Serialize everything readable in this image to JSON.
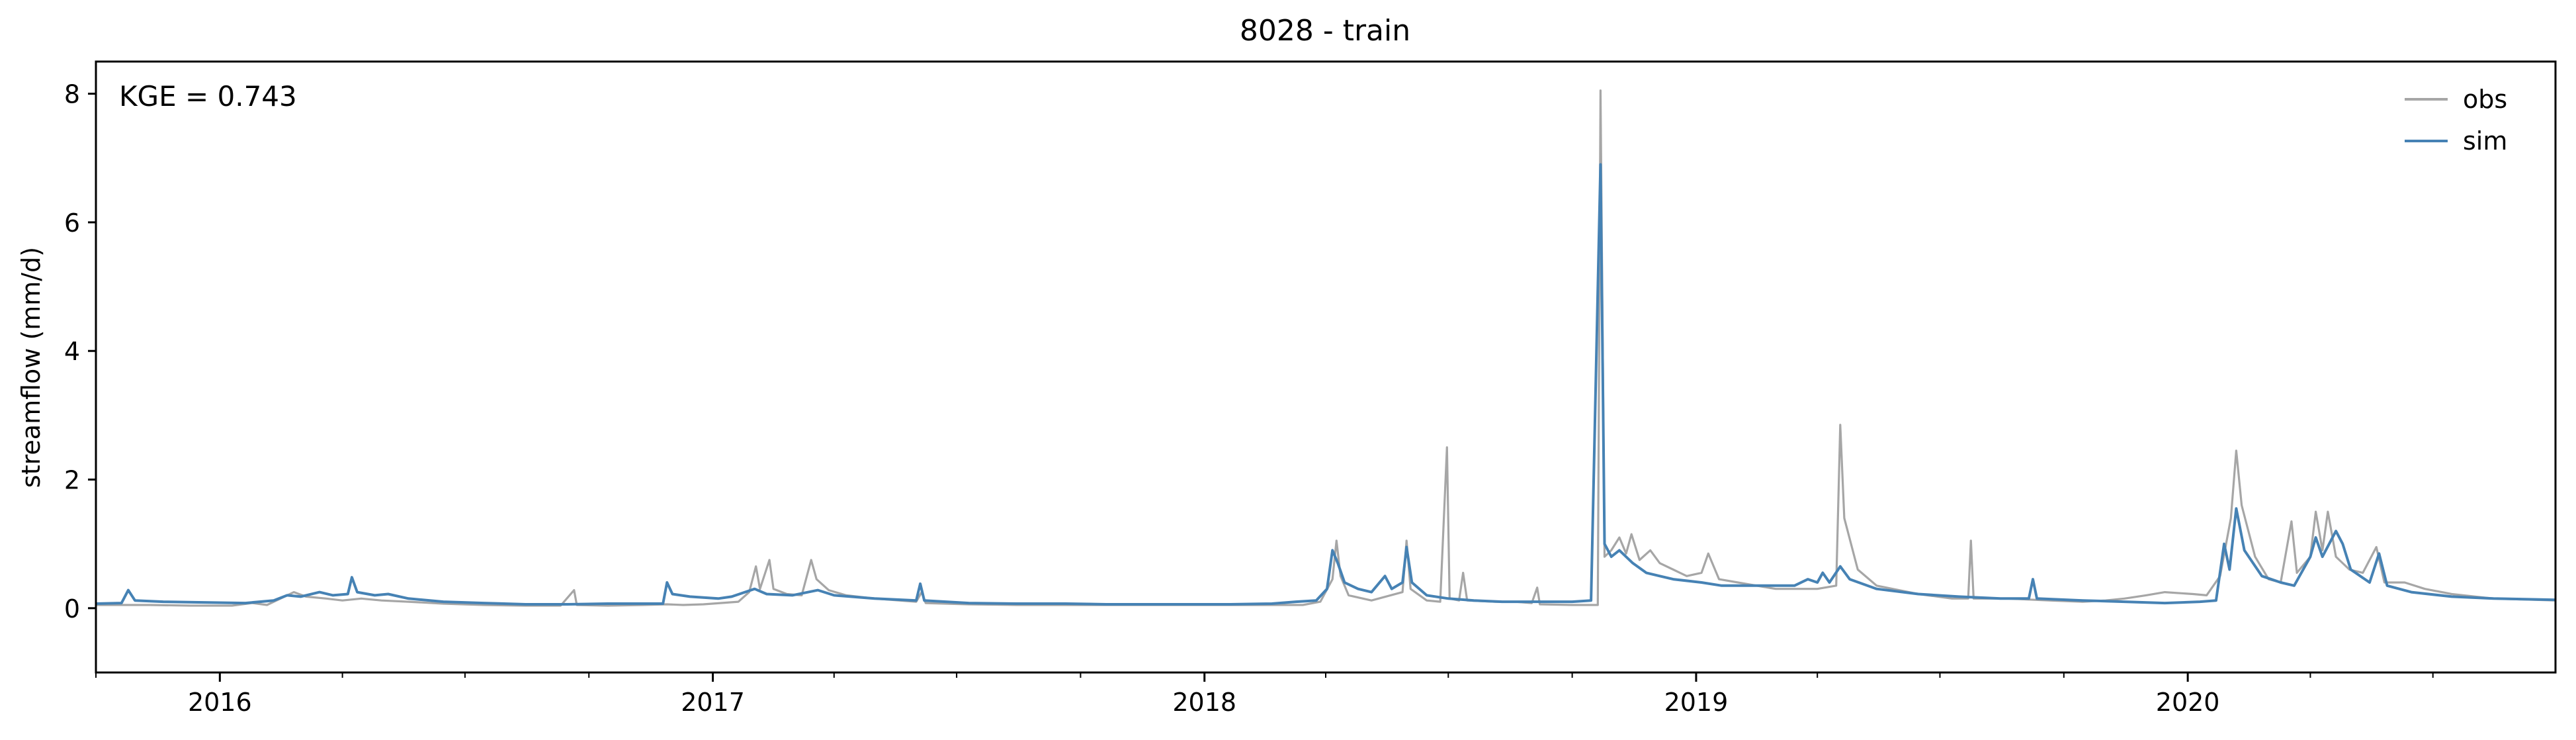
{
  "chart_data": {
    "type": "line",
    "title": "8028 - train",
    "xlabel": "",
    "ylabel": "streamflow (mm/d)",
    "annotation": "KGE = 0.743",
    "xlim": [
      "2015-10-01",
      "2020-09-30"
    ],
    "ylim": [
      -1.0,
      8.5
    ],
    "yticks": [
      0,
      2,
      4,
      6,
      8
    ],
    "xticks": [
      {
        "date": "2016-01-01",
        "label": "2016"
      },
      {
        "date": "2017-01-01",
        "label": "2017"
      },
      {
        "date": "2018-01-01",
        "label": "2018"
      },
      {
        "date": "2019-01-01",
        "label": "2019"
      },
      {
        "date": "2020-01-01",
        "label": "2020"
      }
    ],
    "grid": false,
    "legend_position": "top-right",
    "series": [
      {
        "name": "obs",
        "color": "#a6a6a6",
        "points": [
          [
            "2015-10-01",
            0.05
          ],
          [
            "2015-10-20",
            0.05
          ],
          [
            "2015-11-10",
            0.05
          ],
          [
            "2015-12-10",
            0.04
          ],
          [
            "2016-01-10",
            0.04
          ],
          [
            "2016-01-25",
            0.08
          ],
          [
            "2016-02-05",
            0.05
          ],
          [
            "2016-02-15",
            0.15
          ],
          [
            "2016-02-25",
            0.25
          ],
          [
            "2016-03-05",
            0.18
          ],
          [
            "2016-03-20",
            0.15
          ],
          [
            "2016-04-01",
            0.12
          ],
          [
            "2016-04-15",
            0.15
          ],
          [
            "2016-04-30",
            0.12
          ],
          [
            "2016-05-20",
            0.1
          ],
          [
            "2016-06-15",
            0.07
          ],
          [
            "2016-07-15",
            0.05
          ],
          [
            "2016-08-15",
            0.04
          ],
          [
            "2016-09-10",
            0.04
          ],
          [
            "2016-09-20",
            0.28
          ],
          [
            "2016-09-22",
            0.05
          ],
          [
            "2016-10-15",
            0.04
          ],
          [
            "2016-11-10",
            0.05
          ],
          [
            "2016-11-28",
            0.06
          ],
          [
            "2016-12-10",
            0.05
          ],
          [
            "2016-12-25",
            0.06
          ],
          [
            "2017-01-20",
            0.1
          ],
          [
            "2017-01-28",
            0.25
          ],
          [
            "2017-02-02",
            0.65
          ],
          [
            "2017-02-05",
            0.3
          ],
          [
            "2017-02-12",
            0.75
          ],
          [
            "2017-02-15",
            0.3
          ],
          [
            "2017-02-25",
            0.22
          ],
          [
            "2017-03-08",
            0.2
          ],
          [
            "2017-03-15",
            0.75
          ],
          [
            "2017-03-19",
            0.45
          ],
          [
            "2017-03-28",
            0.28
          ],
          [
            "2017-04-10",
            0.2
          ],
          [
            "2017-05-01",
            0.15
          ],
          [
            "2017-06-01",
            0.1
          ],
          [
            "2017-06-05",
            0.25
          ],
          [
            "2017-06-08",
            0.08
          ],
          [
            "2017-07-10",
            0.06
          ],
          [
            "2017-08-15",
            0.05
          ],
          [
            "2017-09-20",
            0.05
          ],
          [
            "2017-10-20",
            0.05
          ],
          [
            "2017-11-20",
            0.05
          ],
          [
            "2017-12-20",
            0.05
          ],
          [
            "2018-01-20",
            0.05
          ],
          [
            "2018-02-20",
            0.05
          ],
          [
            "2018-03-15",
            0.05
          ],
          [
            "2018-03-28",
            0.1
          ],
          [
            "2018-04-06",
            0.45
          ],
          [
            "2018-04-09",
            1.05
          ],
          [
            "2018-04-12",
            0.5
          ],
          [
            "2018-04-18",
            0.2
          ],
          [
            "2018-05-05",
            0.12
          ],
          [
            "2018-05-28",
            0.25
          ],
          [
            "2018-05-31",
            1.05
          ],
          [
            "2018-06-03",
            0.3
          ],
          [
            "2018-06-15",
            0.12
          ],
          [
            "2018-06-25",
            0.1
          ],
          [
            "2018-06-30",
            2.5
          ],
          [
            "2018-07-02",
            0.15
          ],
          [
            "2018-07-09",
            0.12
          ],
          [
            "2018-07-12",
            0.55
          ],
          [
            "2018-07-15",
            0.12
          ],
          [
            "2018-08-05",
            0.1
          ],
          [
            "2018-08-20",
            0.1
          ],
          [
            "2018-09-01",
            0.08
          ],
          [
            "2018-09-05",
            0.32
          ],
          [
            "2018-09-07",
            0.06
          ],
          [
            "2018-10-01",
            0.05
          ],
          [
            "2018-10-20",
            0.05
          ],
          [
            "2018-10-22",
            8.05
          ],
          [
            "2018-10-25",
            0.8
          ],
          [
            "2018-10-30",
            0.9
          ],
          [
            "2018-11-05",
            1.1
          ],
          [
            "2018-11-10",
            0.85
          ],
          [
            "2018-11-14",
            1.15
          ],
          [
            "2018-11-20",
            0.75
          ],
          [
            "2018-11-28",
            0.9
          ],
          [
            "2018-12-05",
            0.7
          ],
          [
            "2018-12-15",
            0.6
          ],
          [
            "2018-12-25",
            0.5
          ],
          [
            "2019-01-05",
            0.55
          ],
          [
            "2019-01-10",
            0.85
          ],
          [
            "2019-01-18",
            0.45
          ],
          [
            "2019-02-01",
            0.4
          ],
          [
            "2019-03-01",
            0.3
          ],
          [
            "2019-03-15",
            0.3
          ],
          [
            "2019-04-01",
            0.3
          ],
          [
            "2019-04-15",
            0.35
          ],
          [
            "2019-04-18",
            2.85
          ],
          [
            "2019-04-21",
            1.4
          ],
          [
            "2019-05-01",
            0.6
          ],
          [
            "2019-05-15",
            0.35
          ],
          [
            "2019-06-15",
            0.22
          ],
          [
            "2019-07-10",
            0.15
          ],
          [
            "2019-07-22",
            0.15
          ],
          [
            "2019-07-24",
            1.05
          ],
          [
            "2019-07-26",
            0.15
          ],
          [
            "2019-08-20",
            0.15
          ],
          [
            "2019-09-20",
            0.12
          ],
          [
            "2019-10-15",
            0.1
          ],
          [
            "2019-11-01",
            0.12
          ],
          [
            "2019-11-15",
            0.15
          ],
          [
            "2019-12-01",
            0.2
          ],
          [
            "2019-12-15",
            0.25
          ],
          [
            "2020-01-05",
            0.22
          ],
          [
            "2020-01-15",
            0.2
          ],
          [
            "2020-01-25",
            0.5
          ],
          [
            "2020-02-02",
            1.4
          ],
          [
            "2020-02-06",
            2.45
          ],
          [
            "2020-02-10",
            1.6
          ],
          [
            "2020-02-20",
            0.8
          ],
          [
            "2020-03-01",
            0.45
          ],
          [
            "2020-03-10",
            0.4
          ],
          [
            "2020-03-18",
            1.35
          ],
          [
            "2020-03-22",
            0.55
          ],
          [
            "2020-04-01",
            0.8
          ],
          [
            "2020-04-05",
            1.5
          ],
          [
            "2020-04-10",
            0.9
          ],
          [
            "2020-04-14",
            1.5
          ],
          [
            "2020-04-20",
            0.8
          ],
          [
            "2020-04-30",
            0.6
          ],
          [
            "2020-05-10",
            0.55
          ],
          [
            "2020-05-20",
            0.95
          ],
          [
            "2020-05-26",
            0.4
          ],
          [
            "2020-06-10",
            0.4
          ],
          [
            "2020-06-25",
            0.3
          ],
          [
            "2020-07-15",
            0.22
          ],
          [
            "2020-08-15",
            0.15
          ],
          [
            "2020-09-30",
            0.12
          ]
        ]
      },
      {
        "name": "sim",
        "color": "#4682b4",
        "points": [
          [
            "2015-10-01",
            0.07
          ],
          [
            "2015-10-20",
            0.08
          ],
          [
            "2015-10-25",
            0.28
          ],
          [
            "2015-10-30",
            0.12
          ],
          [
            "2015-11-20",
            0.1
          ],
          [
            "2015-12-20",
            0.09
          ],
          [
            "2016-01-20",
            0.08
          ],
          [
            "2016-02-10",
            0.12
          ],
          [
            "2016-02-20",
            0.2
          ],
          [
            "2016-03-01",
            0.18
          ],
          [
            "2016-03-15",
            0.25
          ],
          [
            "2016-03-25",
            0.2
          ],
          [
            "2016-04-05",
            0.22
          ],
          [
            "2016-04-08",
            0.48
          ],
          [
            "2016-04-12",
            0.25
          ],
          [
            "2016-04-25",
            0.2
          ],
          [
            "2016-05-05",
            0.22
          ],
          [
            "2016-05-20",
            0.15
          ],
          [
            "2016-06-15",
            0.1
          ],
          [
            "2016-07-15",
            0.08
          ],
          [
            "2016-08-15",
            0.06
          ],
          [
            "2016-09-15",
            0.06
          ],
          [
            "2016-10-15",
            0.07
          ],
          [
            "2016-11-15",
            0.07
          ],
          [
            "2016-11-25",
            0.07
          ],
          [
            "2016-11-28",
            0.4
          ],
          [
            "2016-12-02",
            0.22
          ],
          [
            "2016-12-15",
            0.18
          ],
          [
            "2017-01-05",
            0.15
          ],
          [
            "2017-01-15",
            0.18
          ],
          [
            "2017-02-01",
            0.3
          ],
          [
            "2017-02-10",
            0.22
          ],
          [
            "2017-03-01",
            0.2
          ],
          [
            "2017-03-20",
            0.28
          ],
          [
            "2017-04-01",
            0.2
          ],
          [
            "2017-05-01",
            0.15
          ],
          [
            "2017-06-01",
            0.12
          ],
          [
            "2017-06-04",
            0.38
          ],
          [
            "2017-06-07",
            0.12
          ],
          [
            "2017-07-10",
            0.08
          ],
          [
            "2017-08-15",
            0.07
          ],
          [
            "2017-09-20",
            0.07
          ],
          [
            "2017-10-20",
            0.06
          ],
          [
            "2017-11-20",
            0.06
          ],
          [
            "2017-12-20",
            0.06
          ],
          [
            "2018-01-20",
            0.06
          ],
          [
            "2018-02-20",
            0.07
          ],
          [
            "2018-03-10",
            0.1
          ],
          [
            "2018-03-25",
            0.12
          ],
          [
            "2018-04-02",
            0.3
          ],
          [
            "2018-04-06",
            0.9
          ],
          [
            "2018-04-10",
            0.7
          ],
          [
            "2018-04-15",
            0.4
          ],
          [
            "2018-04-25",
            0.3
          ],
          [
            "2018-05-05",
            0.25
          ],
          [
            "2018-05-15",
            0.5
          ],
          [
            "2018-05-20",
            0.3
          ],
          [
            "2018-05-28",
            0.4
          ],
          [
            "2018-05-31",
            0.95
          ],
          [
            "2018-06-04",
            0.4
          ],
          [
            "2018-06-15",
            0.2
          ],
          [
            "2018-07-01",
            0.15
          ],
          [
            "2018-07-20",
            0.12
          ],
          [
            "2018-08-10",
            0.1
          ],
          [
            "2018-09-10",
            0.1
          ],
          [
            "2018-10-01",
            0.1
          ],
          [
            "2018-10-15",
            0.12
          ],
          [
            "2018-10-22",
            6.9
          ],
          [
            "2018-10-25",
            1.0
          ],
          [
            "2018-10-30",
            0.8
          ],
          [
            "2018-11-05",
            0.9
          ],
          [
            "2018-11-15",
            0.7
          ],
          [
            "2018-11-25",
            0.55
          ],
          [
            "2018-12-05",
            0.5
          ],
          [
            "2018-12-15",
            0.45
          ],
          [
            "2019-01-05",
            0.4
          ],
          [
            "2019-01-20",
            0.35
          ],
          [
            "2019-02-15",
            0.35
          ],
          [
            "2019-03-15",
            0.35
          ],
          [
            "2019-03-25",
            0.45
          ],
          [
            "2019-04-01",
            0.4
          ],
          [
            "2019-04-05",
            0.55
          ],
          [
            "2019-04-10",
            0.4
          ],
          [
            "2019-04-18",
            0.65
          ],
          [
            "2019-04-25",
            0.45
          ],
          [
            "2019-05-15",
            0.3
          ],
          [
            "2019-06-15",
            0.22
          ],
          [
            "2019-07-15",
            0.18
          ],
          [
            "2019-08-15",
            0.15
          ],
          [
            "2019-09-05",
            0.15
          ],
          [
            "2019-09-08",
            0.45
          ],
          [
            "2019-09-11",
            0.15
          ],
          [
            "2019-10-15",
            0.12
          ],
          [
            "2019-11-15",
            0.1
          ],
          [
            "2019-12-15",
            0.08
          ],
          [
            "2020-01-10",
            0.1
          ],
          [
            "2020-01-22",
            0.12
          ],
          [
            "2020-01-28",
            1.0
          ],
          [
            "2020-02-01",
            0.6
          ],
          [
            "2020-02-06",
            1.55
          ],
          [
            "2020-02-12",
            0.9
          ],
          [
            "2020-02-25",
            0.5
          ],
          [
            "2020-03-10",
            0.4
          ],
          [
            "2020-03-20",
            0.35
          ],
          [
            "2020-04-01",
            0.8
          ],
          [
            "2020-04-05",
            1.1
          ],
          [
            "2020-04-10",
            0.8
          ],
          [
            "2020-04-20",
            1.2
          ],
          [
            "2020-04-25",
            1.0
          ],
          [
            "2020-05-01",
            0.6
          ],
          [
            "2020-05-15",
            0.4
          ],
          [
            "2020-05-22",
            0.85
          ],
          [
            "2020-05-28",
            0.35
          ],
          [
            "2020-06-15",
            0.25
          ],
          [
            "2020-07-15",
            0.18
          ],
          [
            "2020-08-15",
            0.15
          ],
          [
            "2020-09-30",
            0.13
          ]
        ]
      }
    ]
  }
}
